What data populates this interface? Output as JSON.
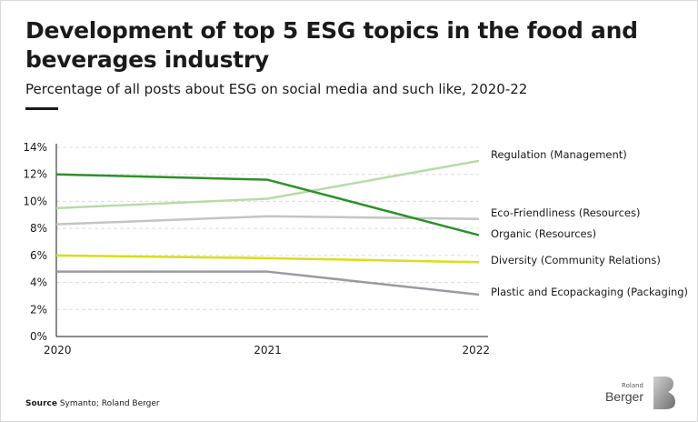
{
  "header": {
    "title": "Development of top 5 ESG topics in the food and beverages industry",
    "subtitle": "Percentage of all posts about ESG on social media and such like, 2020-22"
  },
  "footer": {
    "source_label": "Source",
    "source_text": "Symanto; Roland Berger",
    "logo_small": "Roland",
    "logo_big": "Berger"
  },
  "chart_data": {
    "type": "line",
    "title": "Development of top 5 ESG topics in the food and beverages industry",
    "subtitle": "Percentage of all posts about ESG on social media and such like, 2020-22",
    "x": [
      "2020",
      "2021",
      "2022"
    ],
    "ylim": [
      0,
      14
    ],
    "yticks": [
      0,
      2,
      4,
      6,
      8,
      10,
      12,
      14
    ],
    "ytick_labels": [
      "0%",
      "2%",
      "4%",
      "6%",
      "8%",
      "10%",
      "12%",
      "14%"
    ],
    "grid": true,
    "legend_placement": "right (direct labels at line ends)",
    "series": [
      {
        "name": "Regulation (Management)",
        "values": [
          9.5,
          10.2,
          13.0
        ],
        "color": "#b8dba8"
      },
      {
        "name": "Eco-Friendliness (Resources)",
        "values": [
          8.3,
          8.9,
          8.7
        ],
        "color": "#c4c4c4"
      },
      {
        "name": "Organic (Resources)",
        "values": [
          12.0,
          11.6,
          7.5
        ],
        "color": "#2e8f2a"
      },
      {
        "name": "Diversity (Community Relations)",
        "values": [
          6.0,
          5.8,
          5.5
        ],
        "color": "#d7de1c"
      },
      {
        "name": "Plastic and Ecopackaging (Packaging)",
        "values": [
          4.8,
          4.8,
          3.1
        ],
        "color": "#9a9aa0"
      }
    ]
  }
}
